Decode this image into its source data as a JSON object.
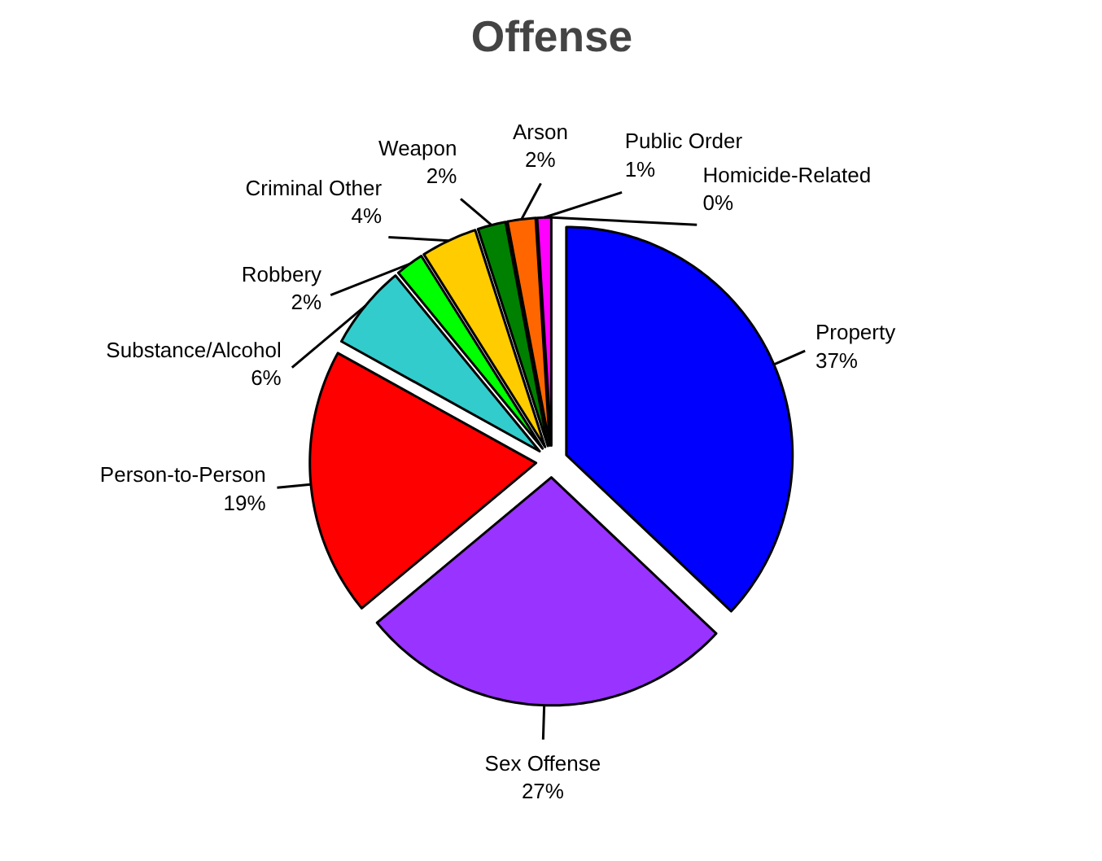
{
  "chart_data": {
    "type": "pie",
    "title": "Offense",
    "categories": [
      "Property",
      "Sex Offense",
      "Person-to-Person",
      "Substance/Alcohol",
      "Robbery",
      "Criminal Other",
      "Weapon",
      "Arson",
      "Public Order",
      "Homicide-Related"
    ],
    "values": [
      37,
      27,
      19,
      6,
      2,
      4,
      2,
      2,
      1,
      0
    ],
    "value_labels": [
      "37%",
      "27%",
      "19%",
      "6%",
      "2%",
      "4%",
      "2%",
      "2%",
      "1%",
      "0%"
    ],
    "colors": [
      "#0000ff",
      "#9933ff",
      "#ff0000",
      "#33cccc",
      "#00ff00",
      "#ffcc00",
      "#008000",
      "#ff6600",
      "#ff00ff",
      "#ffffff"
    ]
  }
}
